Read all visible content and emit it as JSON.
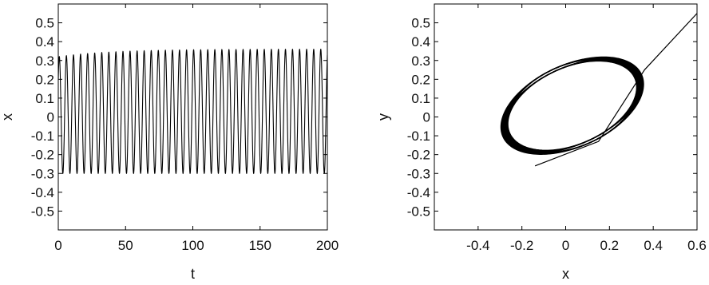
{
  "chart_data": [
    {
      "type": "line",
      "title": "",
      "xlabel": "t",
      "ylabel": "x",
      "xlim": [
        0,
        200
      ],
      "ylim": [
        -0.6,
        0.6
      ],
      "x_ticks": [
        0,
        50,
        100,
        150,
        200
      ],
      "x_tick_labels": [
        "0",
        "50",
        "100",
        "150",
        "200"
      ],
      "y_ticks": [
        -0.5,
        -0.4,
        -0.3,
        -0.2,
        -0.1,
        0,
        0.1,
        0.2,
        0.3,
        0.4,
        0.5
      ],
      "y_tick_labels": [
        "-0.5",
        "-0.4",
        "-0.3",
        "-0.2",
        "-0.1",
        "0",
        "0.1",
        "0.2",
        "0.3",
        "0.4",
        "0.5"
      ],
      "grid": false,
      "series": [
        {
          "color": "#000000",
          "signal": {
            "start_t": 0,
            "end_t": 200,
            "start_x": 0.2,
            "period": 5.25,
            "upper_initial": 0.32,
            "upper_final": 0.36,
            "lower": -0.3
          }
        }
      ]
    },
    {
      "type": "line",
      "title": "",
      "xlabel": "x",
      "ylabel": "y",
      "xlim": [
        -0.6,
        0.6
      ],
      "ylim": [
        -0.6,
        0.6
      ],
      "x_ticks": [
        -0.4,
        -0.2,
        0,
        0.2,
        0.4,
        0.6
      ],
      "x_tick_labels": [
        "-0.4",
        "-0.2",
        "0",
        "0.2",
        "0.4",
        "0.6"
      ],
      "y_ticks": [
        -0.5,
        -0.4,
        -0.3,
        -0.2,
        -0.1,
        0,
        0.1,
        0.2,
        0.3,
        0.4,
        0.5
      ],
      "y_tick_labels": [
        "-0.5",
        "-0.4",
        "-0.3",
        "-0.2",
        "-0.1",
        "0",
        "0.1",
        "0.2",
        "0.3",
        "0.4",
        "0.5"
      ],
      "grid": false,
      "series": [
        {
          "color": "#000000",
          "transient": [
            [
              0.6,
              0.55
            ],
            [
              0.36,
              0.25
            ],
            [
              0.15,
              -0.13
            ],
            [
              -0.14,
              -0.26
            ]
          ],
          "limit_cycle": {
            "center": [
              0.03,
              0.06
            ],
            "semi_major": 0.34,
            "semi_minor": 0.21,
            "angle_deg": 31
          }
        }
      ]
    }
  ]
}
